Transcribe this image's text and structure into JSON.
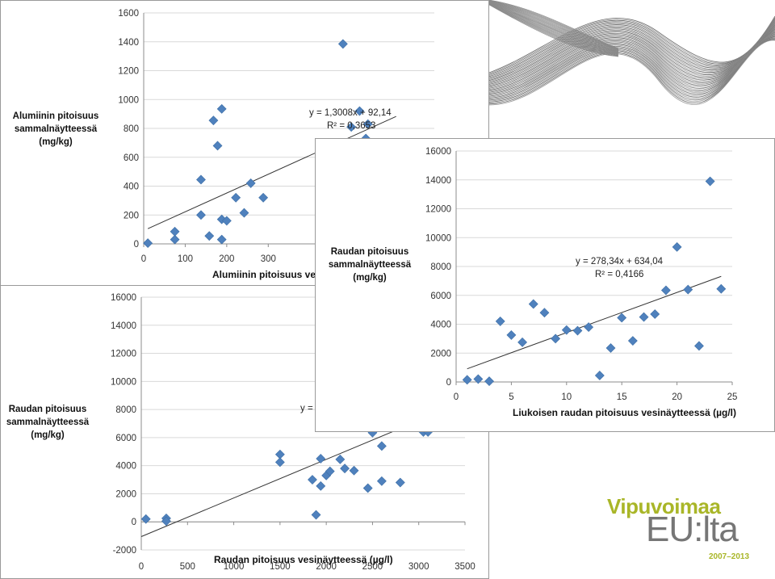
{
  "chart_data": [
    {
      "id": "chart1",
      "type": "scatter",
      "xlabel": "Alumiinin pitoisuus vesinäytteessä (µg/l)",
      "ylabel": [
        "Alumiinin pitoisuus",
        "sammalnäytteessä",
        "(mg/kg)"
      ],
      "xlim": [
        0,
        700
      ],
      "ylim": [
        0,
        1600
      ],
      "xticks": [
        0,
        100,
        200,
        300
      ],
      "yticks": [
        0,
        200,
        400,
        600,
        800,
        1000,
        1200,
        1400,
        1600
      ],
      "grid": true,
      "marker_color": "#4f81bd",
      "trendline": {
        "slope": 1.3008,
        "intercept": 92.14,
        "x_range": [
          10,
          608
        ]
      },
      "equation": "y = 1,3008x + 92,14",
      "r2": "R² = 0,3653",
      "points": [
        {
          "x": 10,
          "y": 5
        },
        {
          "x": 75,
          "y": 85
        },
        {
          "x": 75,
          "y": 30
        },
        {
          "x": 138,
          "y": 445
        },
        {
          "x": 138,
          "y": 200
        },
        {
          "x": 158,
          "y": 55
        },
        {
          "x": 168,
          "y": 855
        },
        {
          "x": 178,
          "y": 680
        },
        {
          "x": 188,
          "y": 935
        },
        {
          "x": 188,
          "y": 30
        },
        {
          "x": 188,
          "y": 170
        },
        {
          "x": 200,
          "y": 160
        },
        {
          "x": 222,
          "y": 320
        },
        {
          "x": 242,
          "y": 215
        },
        {
          "x": 258,
          "y": 420
        },
        {
          "x": 288,
          "y": 320
        },
        {
          "x": 480,
          "y": 1385
        },
        {
          "x": 500,
          "y": 810
        },
        {
          "x": 520,
          "y": 920
        },
        {
          "x": 540,
          "y": 830
        },
        {
          "x": 535,
          "y": 730
        }
      ]
    },
    {
      "id": "chart2",
      "type": "scatter",
      "xlabel": "Liukoisen raudan pitoisuus vesinäytteessä (µg/l)",
      "ylabel": [
        "Raudan pitoisuus",
        "sammalnäytteessä",
        "(mg/kg)"
      ],
      "xlim": [
        0,
        25
      ],
      "ylim": [
        0,
        16000
      ],
      "xticks": [
        0,
        5,
        10,
        15,
        20,
        25
      ],
      "yticks": [
        0,
        2000,
        4000,
        6000,
        8000,
        10000,
        12000,
        14000,
        16000
      ],
      "grid": true,
      "marker_color": "#4f81bd",
      "trendline": {
        "slope": 278.34,
        "intercept": 634.04,
        "x_range": [
          1,
          24
        ]
      },
      "equation": "y = 278,34x + 634,04",
      "r2": "R² = 0,4166",
      "points": [
        {
          "x": 1,
          "y": 150
        },
        {
          "x": 2,
          "y": 200
        },
        {
          "x": 3,
          "y": 50
        },
        {
          "x": 4,
          "y": 4200
        },
        {
          "x": 5,
          "y": 3250
        },
        {
          "x": 6,
          "y": 2750
        },
        {
          "x": 7,
          "y": 5400
        },
        {
          "x": 8,
          "y": 4800
        },
        {
          "x": 9,
          "y": 3000
        },
        {
          "x": 10,
          "y": 3600
        },
        {
          "x": 11,
          "y": 3550
        },
        {
          "x": 12,
          "y": 3800
        },
        {
          "x": 13,
          "y": 450
        },
        {
          "x": 14,
          "y": 2350
        },
        {
          "x": 15,
          "y": 4450
        },
        {
          "x": 16,
          "y": 2850
        },
        {
          "x": 17,
          "y": 4500
        },
        {
          "x": 18,
          "y": 4700
        },
        {
          "x": 19,
          "y": 6350
        },
        {
          "x": 20,
          "y": 9350
        },
        {
          "x": 21,
          "y": 6400
        },
        {
          "x": 22,
          "y": 2500
        },
        {
          "x": 23,
          "y": 13900
        },
        {
          "x": 24,
          "y": 6450
        }
      ]
    },
    {
      "id": "chart3",
      "type": "scatter",
      "xlabel": "Raudan pitoisuus vesinäytteessä (µg/l)",
      "ylabel": [
        "Raudan pitoisuus",
        "sammalnäytteessä",
        "(mg/kg)"
      ],
      "xlim": [
        0,
        3500
      ],
      "ylim": [
        -2000,
        16000
      ],
      "xticks": [
        0,
        500,
        1000,
        1500,
        2000,
        2500,
        3000,
        3500
      ],
      "yticks": [
        -2000,
        0,
        2000,
        4000,
        6000,
        8000,
        10000,
        12000,
        14000,
        16000
      ],
      "grid": true,
      "marker_color": "#4f81bd",
      "trendline": {
        "slope": 2.75,
        "intercept": -1050,
        "x_range": [
          0,
          3100
        ]
      },
      "equation": "y =",
      "r2": "",
      "points": [
        {
          "x": 50,
          "y": 200
        },
        {
          "x": 270,
          "y": 250
        },
        {
          "x": 270,
          "y": 50
        },
        {
          "x": 1500,
          "y": 4800
        },
        {
          "x": 1500,
          "y": 4250
        },
        {
          "x": 1850,
          "y": 3000
        },
        {
          "x": 1890,
          "y": 500
        },
        {
          "x": 1940,
          "y": 4500
        },
        {
          "x": 1940,
          "y": 2550
        },
        {
          "x": 2000,
          "y": 3300
        },
        {
          "x": 2040,
          "y": 3600
        },
        {
          "x": 2150,
          "y": 4450
        },
        {
          "x": 2200,
          "y": 3800
        },
        {
          "x": 2300,
          "y": 3650
        },
        {
          "x": 2450,
          "y": 2400
        },
        {
          "x": 2500,
          "y": 6350
        },
        {
          "x": 2600,
          "y": 5400
        },
        {
          "x": 2600,
          "y": 2900
        },
        {
          "x": 2800,
          "y": 2800
        },
        {
          "x": 3050,
          "y": 6400
        },
        {
          "x": 3100,
          "y": 6400
        }
      ]
    }
  ],
  "logo": {
    "top": "Vipuvoimaa",
    "main": "EU:lta",
    "years": "2007–2013",
    "accent_color": "#a9b628",
    "text_color": "#767676"
  }
}
